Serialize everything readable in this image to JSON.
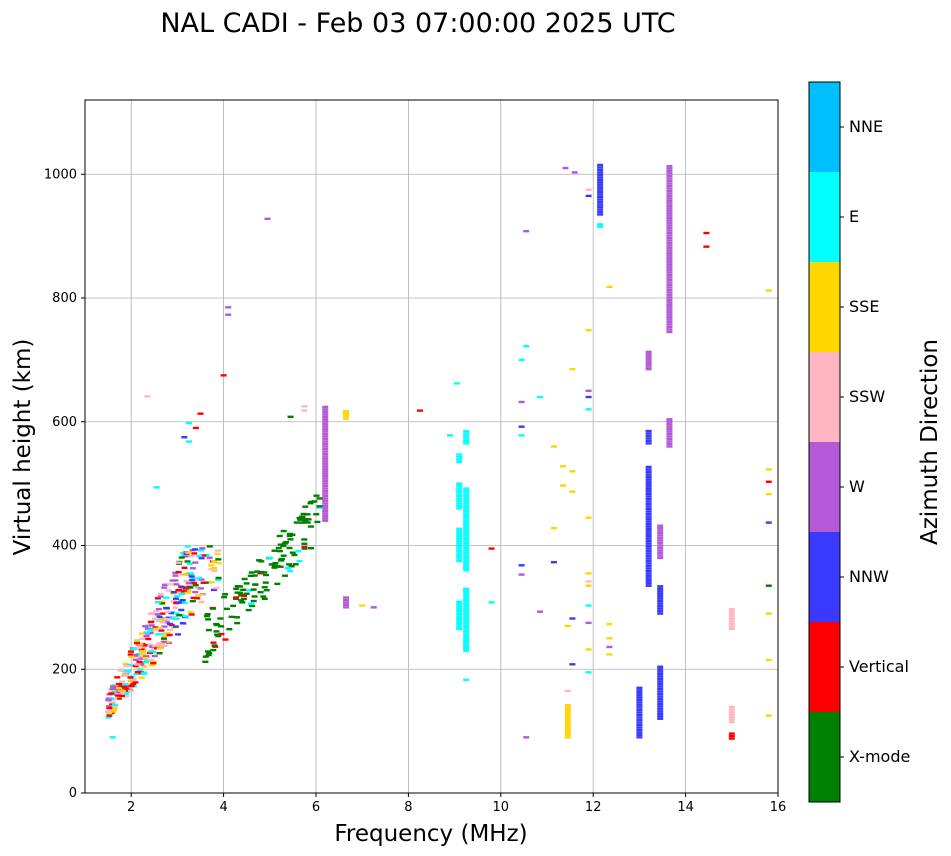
{
  "chart_data": {
    "type": "scatter",
    "title": "NAL CADI - Feb 03 07:00:00 2025 UTC",
    "xlabel": "Frequency (MHz)",
    "ylabel": "Virtual height (km)",
    "xlim": [
      1,
      16
    ],
    "ylim": [
      0,
      1120
    ],
    "xticks": [
      2,
      4,
      6,
      8,
      10,
      12,
      14,
      16
    ],
    "yticks": [
      0,
      200,
      400,
      600,
      800,
      1000
    ],
    "grid": true,
    "colorbar": {
      "label": "Azimuth Direction",
      "categories": [
        {
          "name": "X-mode",
          "color": "#008000"
        },
        {
          "name": "Vertical",
          "color": "#ff0000"
        },
        {
          "name": "NNW",
          "color": "#3a3aff"
        },
        {
          "name": "W",
          "color": "#b45ad6"
        },
        {
          "name": "SSW",
          "color": "#ffb6c1"
        },
        {
          "name": "SSE",
          "color": "#ffd700"
        },
        {
          "name": "E",
          "color": "#00ffff"
        },
        {
          "name": "NNE",
          "color": "#00bfff"
        }
      ]
    },
    "columns": [
      {
        "freq": 12.15,
        "segments": [
          {
            "from": 935,
            "to": 1015,
            "category": "NNW"
          },
          {
            "from": 915,
            "to": 920,
            "category": "E"
          }
        ]
      },
      {
        "freq": 13.2,
        "segments": [
          {
            "from": 335,
            "to": 530,
            "category": "NNW"
          },
          {
            "from": 565,
            "to": 585,
            "category": "NNW"
          },
          {
            "from": 685,
            "to": 715,
            "category": "W"
          }
        ]
      },
      {
        "freq": 13.45,
        "segments": [
          {
            "from": 120,
            "to": 205,
            "category": "NNW"
          },
          {
            "from": 290,
            "to": 335,
            "category": "NNW"
          },
          {
            "from": 380,
            "to": 435,
            "category": "W"
          }
        ]
      },
      {
        "freq": 13.0,
        "segments": [
          {
            "from": 90,
            "to": 170,
            "category": "NNW"
          }
        ]
      },
      {
        "freq": 13.65,
        "segments": [
          {
            "from": 745,
            "to": 1015,
            "category": "W"
          },
          {
            "from": 560,
            "to": 605,
            "category": "W"
          }
        ]
      },
      {
        "freq": 9.1,
        "segments": [
          {
            "from": 265,
            "to": 310,
            "category": "E"
          },
          {
            "from": 375,
            "to": 430,
            "category": "E"
          },
          {
            "from": 460,
            "to": 500,
            "category": "E"
          },
          {
            "from": 535,
            "to": 550,
            "category": "E"
          }
        ]
      },
      {
        "freq": 9.25,
        "segments": [
          {
            "from": 230,
            "to": 330,
            "category": "E"
          },
          {
            "from": 360,
            "to": 495,
            "category": "E"
          },
          {
            "from": 565,
            "to": 585,
            "category": "E"
          }
        ]
      },
      {
        "freq": 11.45,
        "segments": [
          {
            "from": 90,
            "to": 145,
            "category": "SSE"
          }
        ]
      },
      {
        "freq": 15.0,
        "segments": [
          {
            "from": 265,
            "to": 300,
            "category": "SSW"
          },
          {
            "from": 115,
            "to": 140,
            "category": "SSW"
          },
          {
            "from": 88,
            "to": 96,
            "category": "Vertical"
          }
        ]
      },
      {
        "freq": 6.2,
        "segments": [
          {
            "from": 440,
            "to": 625,
            "category": "W"
          }
        ]
      },
      {
        "freq": 6.65,
        "segments": [
          {
            "from": 300,
            "to": 318,
            "category": "W"
          },
          {
            "from": 605,
            "to": 620,
            "category": "SSE"
          }
        ]
      }
    ],
    "points": [
      {
        "freq": 14.45,
        "height": 905,
        "category": "Vertical"
      },
      {
        "freq": 14.45,
        "height": 883,
        "category": "Vertical"
      },
      {
        "freq": 15.8,
        "height": 812,
        "category": "SSE"
      },
      {
        "freq": 15.8,
        "height": 523,
        "category": "SSE"
      },
      {
        "freq": 15.8,
        "height": 503,
        "category": "Vertical"
      },
      {
        "freq": 15.8,
        "height": 483,
        "category": "SSE"
      },
      {
        "freq": 15.8,
        "height": 437,
        "category": "NNW"
      },
      {
        "freq": 15.8,
        "height": 335,
        "category": "X-mode"
      },
      {
        "freq": 15.8,
        "height": 290,
        "category": "SSE"
      },
      {
        "freq": 15.8,
        "height": 215,
        "category": "SSE"
      },
      {
        "freq": 15.8,
        "height": 125,
        "category": "SSE"
      },
      {
        "freq": 12.35,
        "height": 818,
        "category": "SSE"
      },
      {
        "freq": 12.35,
        "height": 273,
        "category": "SSE"
      },
      {
        "freq": 12.35,
        "height": 250,
        "category": "SSE"
      },
      {
        "freq": 12.35,
        "height": 236,
        "category": "W"
      },
      {
        "freq": 12.35,
        "height": 224,
        "category": "SSE"
      },
      {
        "freq": 11.9,
        "height": 975,
        "category": "SSW"
      },
      {
        "freq": 11.9,
        "height": 965,
        "category": "NNW"
      },
      {
        "freq": 11.9,
        "height": 748,
        "category": "SSE"
      },
      {
        "freq": 11.9,
        "height": 650,
        "category": "W"
      },
      {
        "freq": 11.9,
        "height": 640,
        "category": "NNW"
      },
      {
        "freq": 11.9,
        "height": 620,
        "category": "E"
      },
      {
        "freq": 11.9,
        "height": 445,
        "category": "SSE"
      },
      {
        "freq": 11.9,
        "height": 355,
        "category": "SSE"
      },
      {
        "freq": 11.9,
        "height": 342,
        "category": "SSW"
      },
      {
        "freq": 11.9,
        "height": 335,
        "category": "SSE"
      },
      {
        "freq": 11.9,
        "height": 303,
        "category": "E"
      },
      {
        "freq": 11.9,
        "height": 275,
        "category": "W"
      },
      {
        "freq": 11.9,
        "height": 232,
        "category": "SSE"
      },
      {
        "freq": 11.9,
        "height": 195,
        "category": "E"
      },
      {
        "freq": 11.4,
        "height": 1010,
        "category": "W"
      },
      {
        "freq": 11.6,
        "height": 1003,
        "category": "W"
      },
      {
        "freq": 11.55,
        "height": 685,
        "category": "SSE"
      },
      {
        "freq": 11.35,
        "height": 528,
        "category": "SSE"
      },
      {
        "freq": 11.55,
        "height": 520,
        "category": "SSE"
      },
      {
        "freq": 11.35,
        "height": 497,
        "category": "SSE"
      },
      {
        "freq": 11.55,
        "height": 487,
        "category": "SSE"
      },
      {
        "freq": 11.55,
        "height": 282,
        "category": "NNW"
      },
      {
        "freq": 11.45,
        "height": 270,
        "category": "SSE"
      },
      {
        "freq": 11.55,
        "height": 208,
        "category": "NNW"
      },
      {
        "freq": 11.45,
        "height": 165,
        "category": "SSW"
      },
      {
        "freq": 11.15,
        "height": 560,
        "category": "SSE"
      },
      {
        "freq": 11.15,
        "height": 428,
        "category": "SSE"
      },
      {
        "freq": 11.15,
        "height": 373,
        "category": "NNW"
      },
      {
        "freq": 10.55,
        "height": 908,
        "category": "W"
      },
      {
        "freq": 10.55,
        "height": 722,
        "category": "E"
      },
      {
        "freq": 10.45,
        "height": 700,
        "category": "E"
      },
      {
        "freq": 10.45,
        "height": 632,
        "category": "W"
      },
      {
        "freq": 10.85,
        "height": 640,
        "category": "E"
      },
      {
        "freq": 10.45,
        "height": 592,
        "category": "NNW"
      },
      {
        "freq": 10.45,
        "height": 578,
        "category": "E"
      },
      {
        "freq": 10.45,
        "height": 368,
        "category": "NNW"
      },
      {
        "freq": 10.45,
        "height": 353,
        "category": "W"
      },
      {
        "freq": 10.85,
        "height": 293,
        "category": "W"
      },
      {
        "freq": 10.55,
        "height": 90,
        "category": "W"
      },
      {
        "freq": 9.8,
        "height": 395,
        "category": "Vertical"
      },
      {
        "freq": 9.8,
        "height": 308,
        "category": "E"
      },
      {
        "freq": 9.05,
        "height": 662,
        "category": "E"
      },
      {
        "freq": 8.9,
        "height": 578,
        "category": "E"
      },
      {
        "freq": 9.25,
        "height": 183,
        "category": "E"
      },
      {
        "freq": 8.25,
        "height": 618,
        "category": "Vertical"
      },
      {
        "freq": 7.25,
        "height": 300,
        "category": "W"
      },
      {
        "freq": 7.0,
        "height": 303,
        "category": "SSE"
      },
      {
        "freq": 4.0,
        "height": 675,
        "category": "Vertical"
      },
      {
        "freq": 4.1,
        "height": 785,
        "category": "W"
      },
      {
        "freq": 4.1,
        "height": 773,
        "category": "W"
      },
      {
        "freq": 4.95,
        "height": 928,
        "category": "W"
      },
      {
        "freq": 3.5,
        "height": 613,
        "category": "Vertical"
      },
      {
        "freq": 3.25,
        "height": 598,
        "category": "E"
      },
      {
        "freq": 3.4,
        "height": 590,
        "category": "Vertical"
      },
      {
        "freq": 3.15,
        "height": 575,
        "category": "NNW"
      },
      {
        "freq": 3.25,
        "height": 568,
        "category": "E"
      },
      {
        "freq": 2.35,
        "height": 641,
        "category": "SSW"
      },
      {
        "freq": 2.55,
        "height": 494,
        "category": "E"
      },
      {
        "freq": 1.6,
        "height": 90,
        "category": "E"
      },
      {
        "freq": 5.75,
        "height": 618,
        "category": "SSW"
      },
      {
        "freq": 5.75,
        "height": 625,
        "category": "SSW"
      },
      {
        "freq": 5.45,
        "height": 608,
        "category": "X-mode"
      }
    ]
  }
}
